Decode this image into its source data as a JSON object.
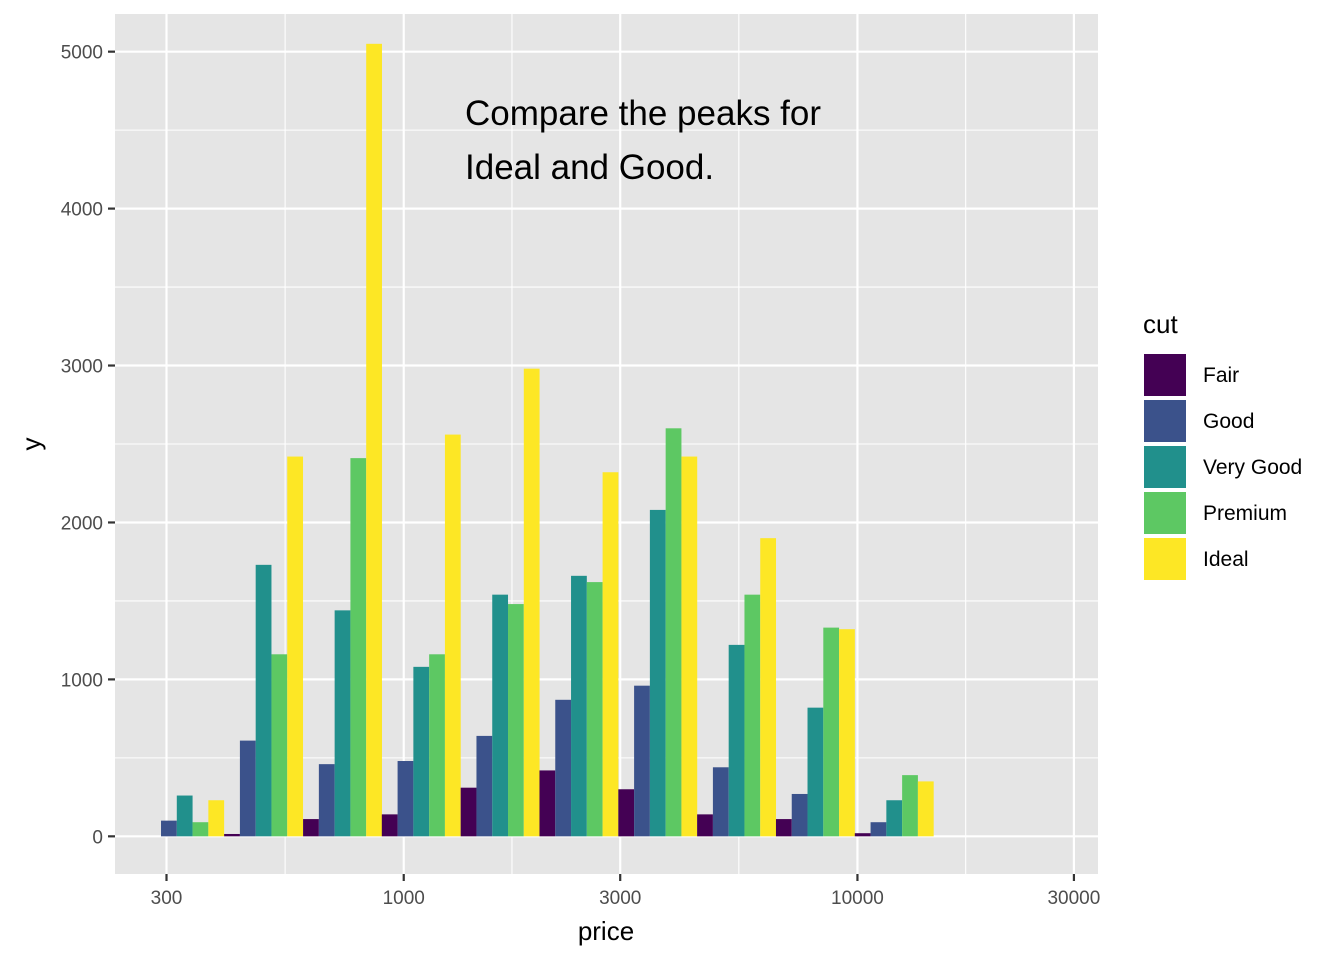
{
  "chart_data": {
    "type": "bar",
    "x_scale": "log10",
    "xlabel": "price",
    "ylabel": "y",
    "xlim": [
      231,
      33900
    ],
    "ylim": [
      -240,
      5240
    ],
    "x_ticks": [
      300,
      1000,
      3000,
      10000,
      30000
    ],
    "x_tick_labels": [
      "300",
      "1000",
      "3000",
      "10000",
      "30000"
    ],
    "y_ticks": [
      0,
      1000,
      2000,
      3000,
      4000,
      5000
    ],
    "y_tick_labels": [
      "0",
      "1000",
      "2000",
      "3000",
      "4000",
      "5000"
    ],
    "grid": true,
    "legend": {
      "title": "cut",
      "position": "right"
    },
    "bin_centers": [
      329,
      491,
      733,
      1093,
      1631,
      2433,
      3630,
      5415,
      8079,
      12053,
      17983
    ],
    "series": [
      {
        "name": "Fair",
        "color": "#440154",
        "values": [
          0,
          15,
          110,
          140,
          310,
          420,
          300,
          140,
          110,
          20,
          0
        ]
      },
      {
        "name": "Good",
        "color": "#3B528B",
        "values": [
          100,
          610,
          460,
          480,
          640,
          870,
          960,
          440,
          270,
          90,
          0
        ]
      },
      {
        "name": "Very Good",
        "color": "#21908C",
        "values": [
          260,
          1730,
          1440,
          1080,
          1540,
          1660,
          2080,
          1220,
          820,
          230,
          0
        ]
      },
      {
        "name": "Premium",
        "color": "#5DC863",
        "values": [
          90,
          1160,
          2410,
          1160,
          1480,
          1620,
          2600,
          1540,
          1330,
          390,
          0
        ]
      },
      {
        "name": "Ideal",
        "color": "#FDE725",
        "values": [
          230,
          2420,
          5050,
          2560,
          2980,
          2320,
          2420,
          1900,
          1320,
          350,
          0
        ]
      }
    ],
    "annotation": [
      "Compare the peaks for",
      "Ideal and Good."
    ]
  },
  "colors": {
    "panel_background": "#e5e5e5",
    "grid": "#ffffff"
  }
}
